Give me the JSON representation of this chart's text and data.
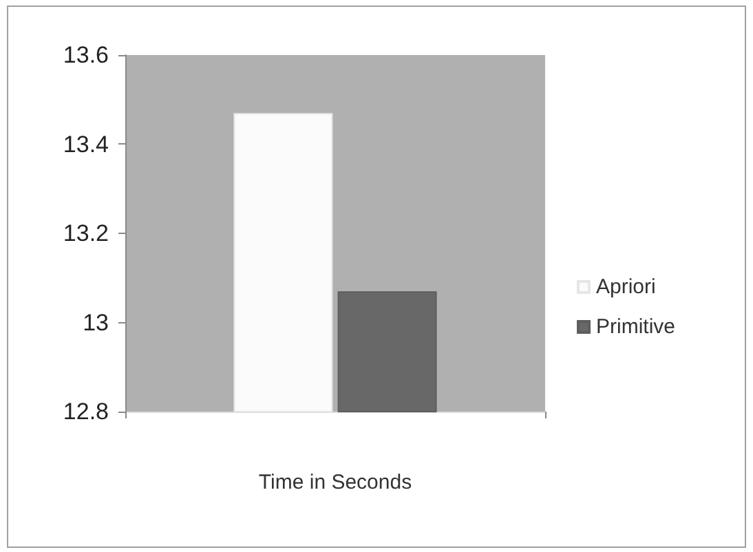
{
  "chart_data": {
    "type": "bar",
    "categories": [
      "Time in Seconds"
    ],
    "series": [
      {
        "name": "Apriori",
        "color": "#fbfbfb",
        "values": [
          13.47
        ]
      },
      {
        "name": "Primitive",
        "color": "#686868",
        "values": [
          13.07
        ]
      }
    ],
    "ylim": [
      12.8,
      13.6
    ],
    "yticks": [
      12.8,
      13,
      13.2,
      13.4,
      13.6
    ],
    "grid": false,
    "legend": "right"
  }
}
